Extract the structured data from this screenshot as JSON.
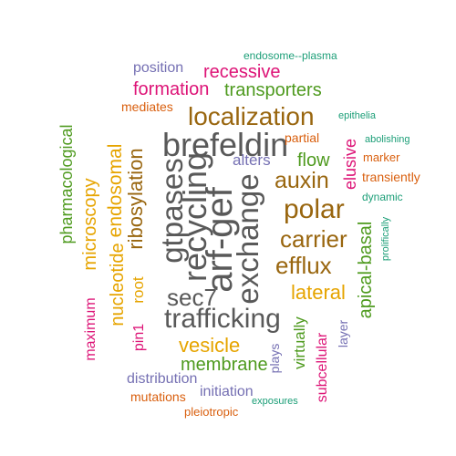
{
  "palette": {
    "gray": "#595959",
    "brown": "#99660f",
    "gold": "#e6a400",
    "green": "#4e9a1e",
    "magenta": "#dd1477",
    "orange": "#d95f0e",
    "teal": "#1b9e77",
    "purple": "#7570b3"
  },
  "words": [
    {
      "text": "gtpases",
      "color": "gray"
    },
    {
      "text": "recycling",
      "color": "gray"
    },
    {
      "text": "arf-gef",
      "color": "gray"
    },
    {
      "text": "exchange",
      "color": "gray"
    },
    {
      "text": "brefeldin",
      "color": "gray"
    },
    {
      "text": "sec7",
      "color": "gray"
    },
    {
      "text": "trafficking",
      "color": "gray"
    },
    {
      "text": "localization",
      "color": "brown"
    },
    {
      "text": "auxin",
      "color": "brown"
    },
    {
      "text": "polar",
      "color": "brown"
    },
    {
      "text": "carrier",
      "color": "brown"
    },
    {
      "text": "efflux",
      "color": "brown"
    },
    {
      "text": "ribosylation",
      "color": "brown"
    },
    {
      "text": "endosomal",
      "color": "gold"
    },
    {
      "text": "nucleotide",
      "color": "gold"
    },
    {
      "text": "microscopy",
      "color": "gold"
    },
    {
      "text": "root",
      "color": "gold"
    },
    {
      "text": "lateral",
      "color": "gold"
    },
    {
      "text": "vesicle",
      "color": "gold"
    },
    {
      "text": "pharmacological",
      "color": "green"
    },
    {
      "text": "transporters",
      "color": "green"
    },
    {
      "text": "flow",
      "color": "green"
    },
    {
      "text": "apical-basal",
      "color": "green"
    },
    {
      "text": "membrane",
      "color": "green"
    },
    {
      "text": "virtually",
      "color": "green"
    },
    {
      "text": "recessive",
      "color": "magenta"
    },
    {
      "text": "formation",
      "color": "magenta"
    },
    {
      "text": "elusive",
      "color": "magenta"
    },
    {
      "text": "pin1",
      "color": "magenta"
    },
    {
      "text": "maximum",
      "color": "magenta"
    },
    {
      "text": "subcellular",
      "color": "magenta"
    },
    {
      "text": "position",
      "color": "purple"
    },
    {
      "text": "alters",
      "color": "purple"
    },
    {
      "text": "distribution",
      "color": "purple"
    },
    {
      "text": "initiation",
      "color": "purple"
    },
    {
      "text": "plays",
      "color": "purple"
    },
    {
      "text": "layer",
      "color": "purple"
    },
    {
      "text": "mediates",
      "color": "orange"
    },
    {
      "text": "partial",
      "color": "orange"
    },
    {
      "text": "marker",
      "color": "orange"
    },
    {
      "text": "transiently",
      "color": "orange"
    },
    {
      "text": "mutations",
      "color": "orange"
    },
    {
      "text": "pleiotropic",
      "color": "orange"
    },
    {
      "text": "endosome--plasma",
      "color": "teal"
    },
    {
      "text": "epithelia",
      "color": "teal"
    },
    {
      "text": "abolishing",
      "color": "teal"
    },
    {
      "text": "dynamic",
      "color": "teal"
    },
    {
      "text": "prolifically",
      "color": "teal"
    },
    {
      "text": "exposures",
      "color": "teal"
    }
  ]
}
